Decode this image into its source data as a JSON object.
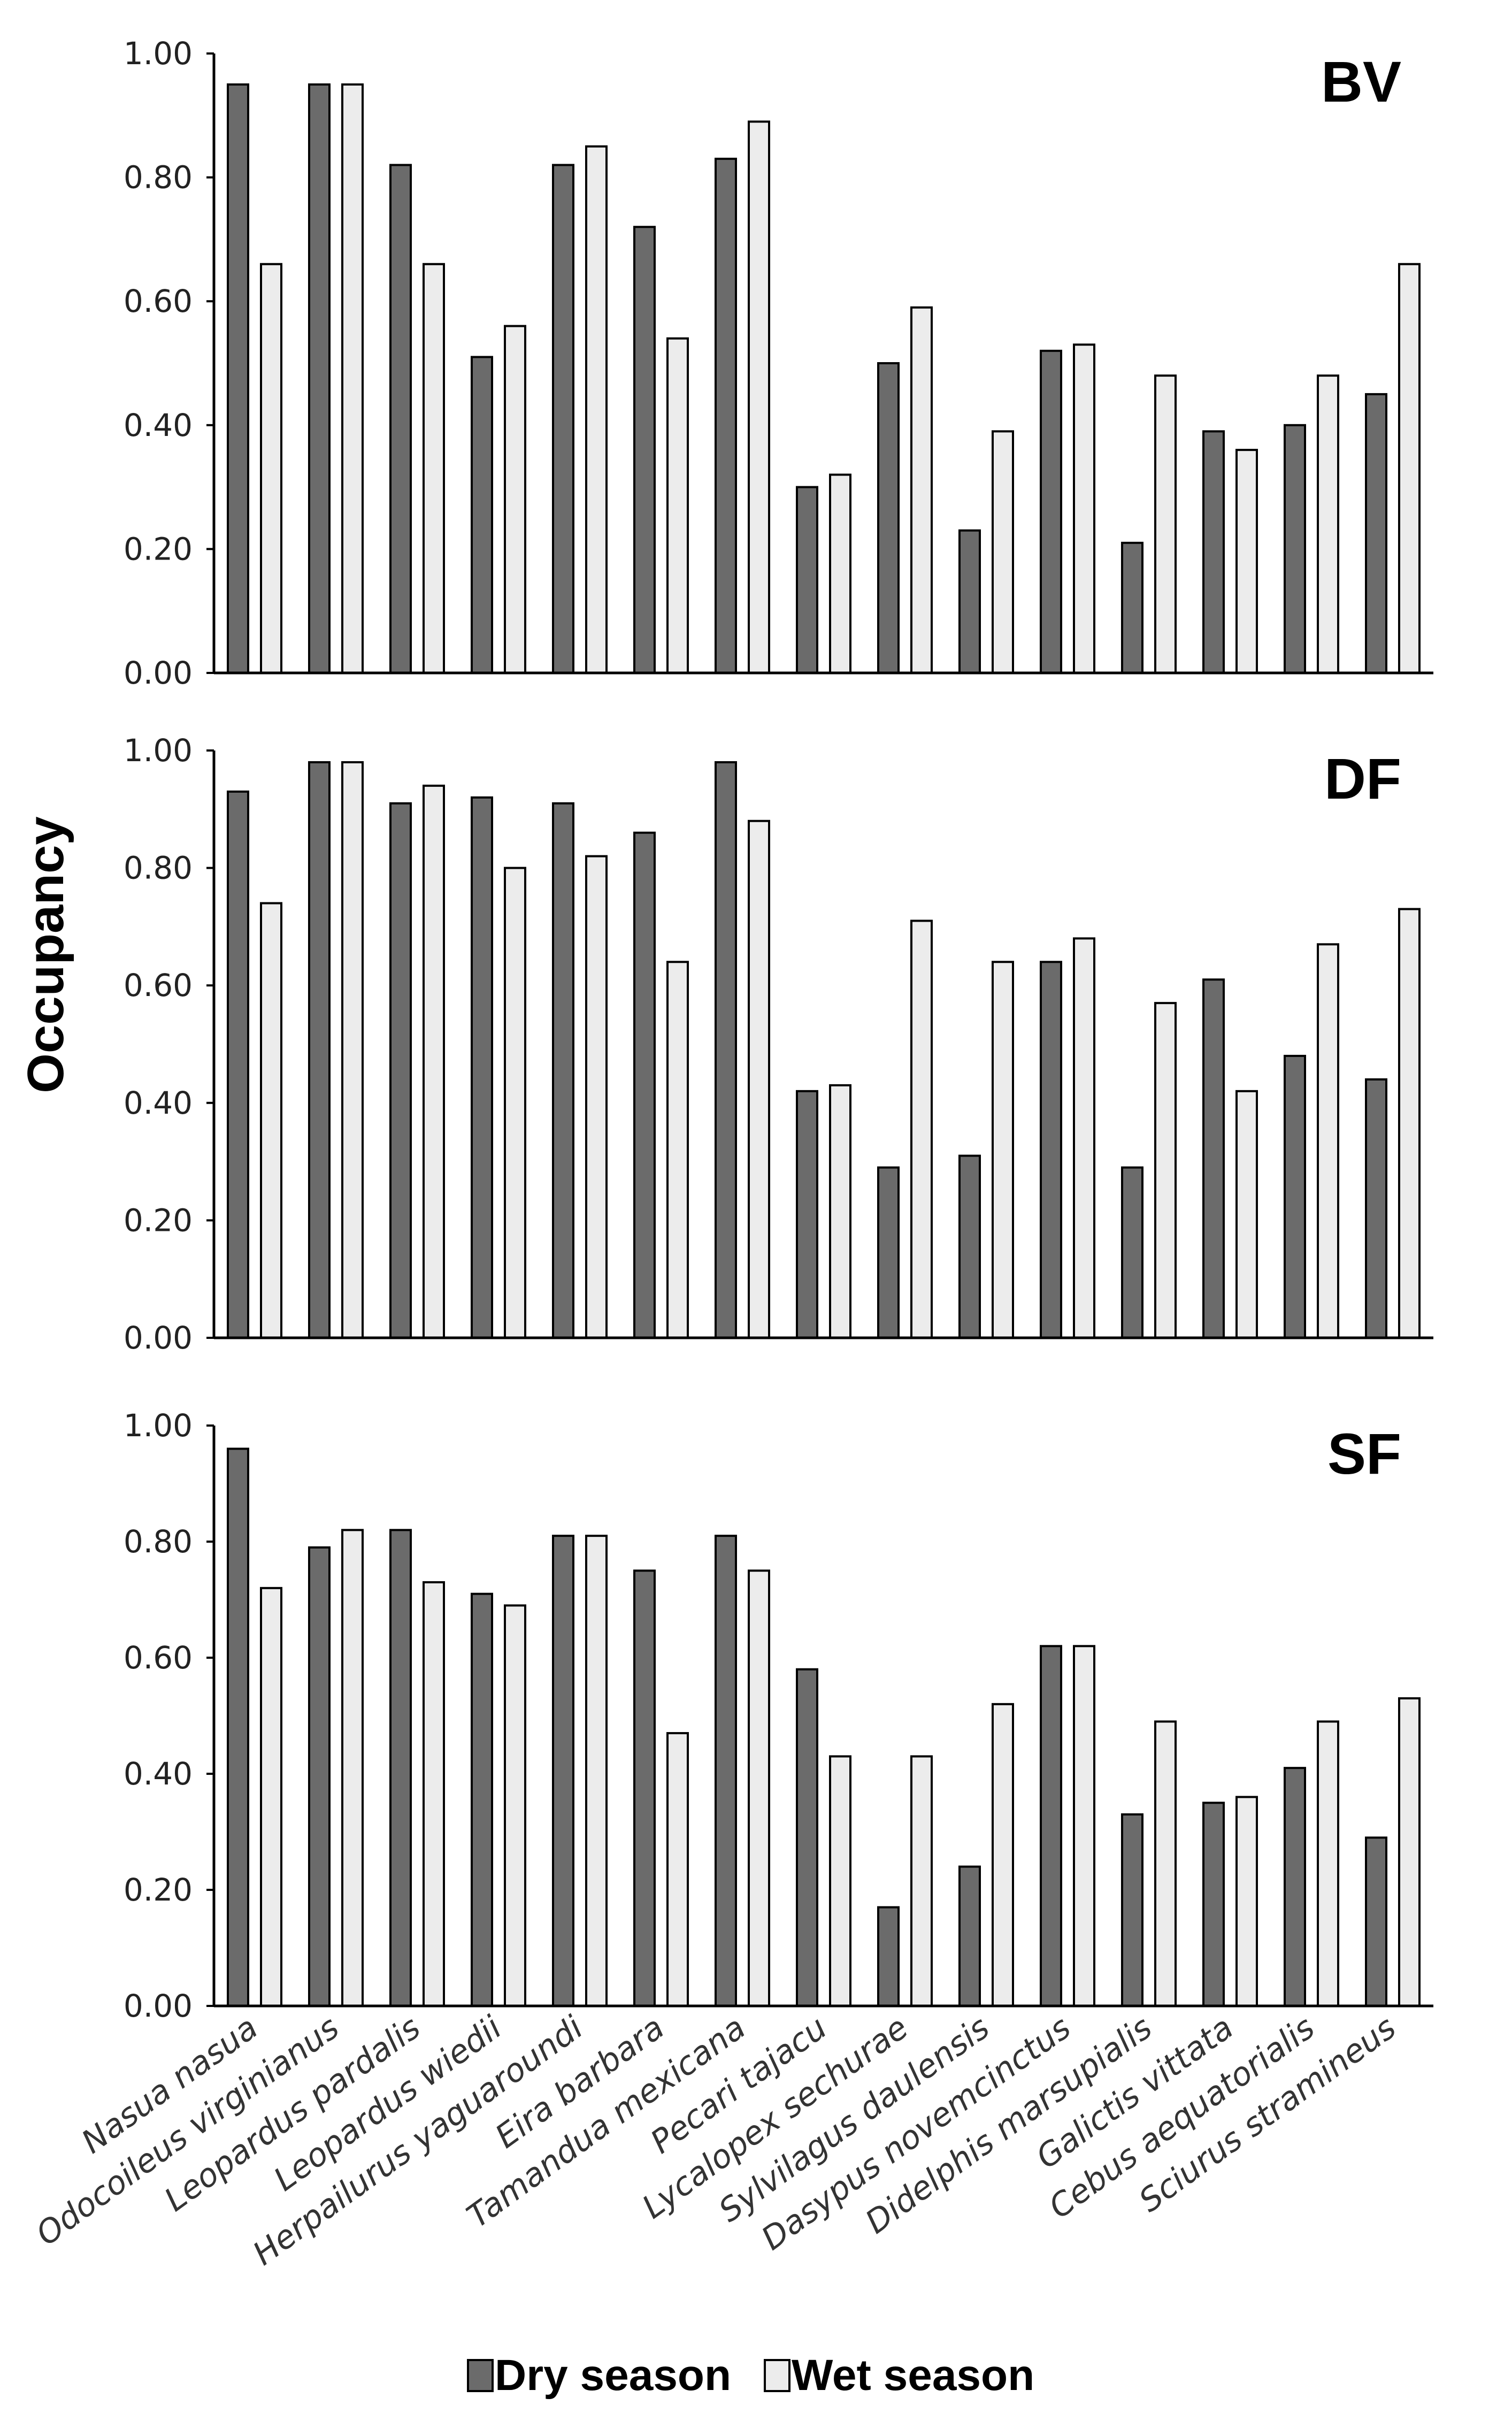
{
  "chart_data": {
    "type": "bar",
    "ylabel": "Occupancy",
    "ylim": [
      0,
      1
    ],
    "yticks": [
      "0.00",
      "0.20",
      "0.40",
      "0.60",
      "0.80",
      "1.00"
    ],
    "categories": [
      "Nasua nasua",
      "Odocoileus virginianus",
      "Leopardus pardalis",
      "Leopardus wiedii",
      "Herpailurus yaguaroundi",
      "Eira barbara",
      "Tamandua mexicana",
      "Pecari tajacu",
      "Lycalopex sechurae",
      "Sylvilagus daulensis",
      "Dasypus novemcinctus",
      "Didelphis marsupialis",
      "Galictis vittata",
      "Cebus aequatorialis",
      "Sciurus stramineus"
    ],
    "legend": [
      "Dry season",
      "Wet season"
    ],
    "colors": {
      "dry": "#6b6b6b",
      "wet": "#ececec",
      "stroke": "#000000"
    },
    "panels": [
      {
        "label": "BV",
        "series": [
          {
            "name": "Dry season",
            "values": [
              0.95,
              0.95,
              0.82,
              0.51,
              0.82,
              0.72,
              0.83,
              0.3,
              0.5,
              0.23,
              0.52,
              0.21,
              0.39,
              0.4,
              0.45
            ]
          },
          {
            "name": "Wet season",
            "values": [
              0.66,
              0.95,
              0.66,
              0.56,
              0.85,
              0.54,
              0.89,
              0.32,
              0.59,
              0.39,
              0.53,
              0.48,
              0.36,
              0.48,
              0.66
            ]
          }
        ]
      },
      {
        "label": "DF",
        "series": [
          {
            "name": "Dry season",
            "values": [
              0.93,
              0.98,
              0.91,
              0.92,
              0.91,
              0.86,
              0.98,
              0.42,
              0.29,
              0.31,
              0.64,
              0.29,
              0.61,
              0.48,
              0.44
            ]
          },
          {
            "name": "Wet season",
            "values": [
              0.74,
              0.98,
              0.94,
              0.8,
              0.82,
              0.64,
              0.88,
              0.43,
              0.71,
              0.64,
              0.68,
              0.57,
              0.42,
              0.67,
              0.73
            ]
          }
        ]
      },
      {
        "label": "SF",
        "series": [
          {
            "name": "Dry season",
            "values": [
              0.96,
              0.79,
              0.82,
              0.71,
              0.81,
              0.75,
              0.81,
              0.58,
              0.17,
              0.24,
              0.62,
              0.33,
              0.35,
              0.41,
              0.29
            ]
          },
          {
            "name": "Wet season",
            "values": [
              0.72,
              0.82,
              0.73,
              0.69,
              0.81,
              0.47,
              0.75,
              0.43,
              0.43,
              0.52,
              0.62,
              0.49,
              0.36,
              0.49,
              0.53
            ]
          }
        ]
      }
    ]
  }
}
